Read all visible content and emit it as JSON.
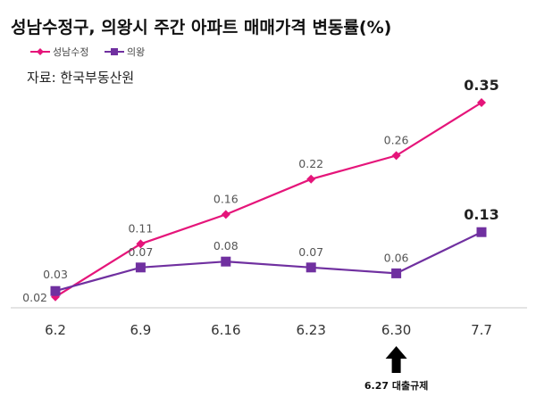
{
  "chart_data": {
    "type": "line",
    "title": "성남수정구, 의왕시 주간 아파트 매매가격 변동률(%)",
    "source": "자료: 한국부동산원",
    "xlabel": "",
    "ylabel": "",
    "ylim": [
      0,
      0.36
    ],
    "grid": false,
    "legend_position": "top-left",
    "categories": [
      "6.2",
      "6.9",
      "6.16",
      "6.23",
      "6.30",
      "7.7"
    ],
    "series": [
      {
        "name": "성남수정",
        "color": "#e5157a",
        "marker": "diamond",
        "values": [
          0.02,
          0.11,
          0.16,
          0.22,
          0.26,
          0.35
        ]
      },
      {
        "name": "의왕",
        "color": "#7030a0",
        "marker": "square",
        "values": [
          0.03,
          0.07,
          0.08,
          0.07,
          0.06,
          0.13
        ]
      }
    ],
    "annotation": {
      "text": "6.27 대출규제",
      "category": "6.30",
      "icon": "up-arrow-icon"
    }
  }
}
